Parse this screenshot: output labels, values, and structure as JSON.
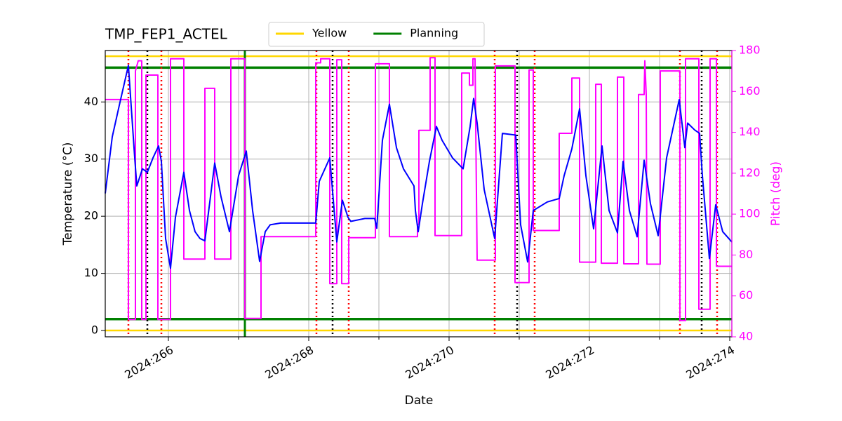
{
  "chart_data": {
    "type": "line",
    "title": "TMP_FEP1_ACTEL",
    "x_label": "Date",
    "y_label": "Temperature (°C)",
    "y2_label": "Pitch (deg)",
    "xlim": [
      265.1,
      274.03
    ],
    "xticks": [
      {
        "value": 266,
        "label": "2024:266"
      },
      {
        "value": 268,
        "label": "2024:268"
      },
      {
        "value": 270,
        "label": "2024:270"
      },
      {
        "value": 272,
        "label": "2024:272"
      },
      {
        "value": 274,
        "label": "2024:274"
      }
    ],
    "minor_xticks": [
      267,
      269,
      271,
      273
    ],
    "ylim": [
      -1.1,
      49
    ],
    "yticks": [
      0,
      10,
      20,
      30,
      40
    ],
    "y2lim": [
      40,
      180
    ],
    "y2ticks": [
      40,
      60,
      80,
      100,
      120,
      140,
      160,
      180
    ],
    "y2_color": "#ff00ff",
    "grid": true,
    "legend": "top",
    "limit_lines": [
      {
        "name": "Yellow",
        "color": "#ffd700",
        "values": [
          48,
          0
        ]
      },
      {
        "name": "Planning",
        "color": "#008000",
        "values": [
          46,
          2
        ]
      }
    ],
    "planning_vline": {
      "color": "#008000",
      "x": 267.09
    },
    "red_vlines": {
      "color": "#ff0000",
      "x": [
        265.43,
        265.9,
        268.11,
        268.57,
        270.65,
        271.22,
        273.29,
        273.82
      ]
    },
    "black_vlines": {
      "color": "#000000",
      "x": [
        265.7,
        268.34,
        270.97,
        273.6
      ]
    },
    "temperature": {
      "color": "#0000ff",
      "x": [
        265.1,
        265.2,
        265.3,
        265.43,
        265.52,
        265.55,
        265.63,
        265.7,
        265.78,
        265.86,
        265.9,
        265.96,
        266.03,
        266.1,
        266.22,
        266.3,
        266.38,
        266.45,
        266.52,
        266.66,
        266.75,
        266.87,
        267.0,
        267.11,
        267.2,
        267.3,
        267.38,
        267.45,
        267.6,
        268.1,
        268.15,
        268.3,
        268.4,
        268.48,
        268.56,
        268.6,
        268.8,
        268.94,
        268.97,
        269.05,
        269.15,
        269.25,
        269.35,
        269.5,
        269.52,
        269.56,
        269.62,
        269.72,
        269.82,
        269.9,
        270.05,
        270.2,
        270.3,
        270.35,
        270.4,
        270.5,
        270.65,
        270.76,
        270.95,
        271.02,
        271.12,
        271.2,
        271.4,
        271.57,
        271.64,
        271.75,
        271.86,
        271.95,
        272.06,
        272.18,
        272.28,
        272.4,
        272.48,
        272.57,
        272.68,
        272.78,
        272.87,
        272.98,
        273.1,
        273.28,
        273.36,
        273.4,
        273.5,
        273.57,
        273.61,
        273.71,
        273.8,
        273.9,
        274.03
      ],
      "values": [
        24.0,
        33.9,
        39.4,
        46.4,
        30.2,
        25.3,
        28.3,
        27.7,
        30.2,
        32.3,
        29.6,
        16.1,
        10.9,
        19.8,
        27.7,
        21.0,
        17.3,
        16.1,
        15.7,
        29.3,
        23.4,
        17.3,
        27.1,
        31.4,
        21.0,
        12.1,
        17.3,
        18.5,
        18.8,
        18.8,
        26.1,
        30.2,
        15.5,
        22.8,
        19.8,
        19.1,
        19.6,
        19.6,
        17.9,
        33.3,
        39.6,
        32.0,
        28.3,
        25.3,
        21.0,
        17.3,
        22.2,
        29.6,
        35.7,
        33.3,
        30.2,
        28.3,
        35.7,
        40.6,
        36.3,
        24.7,
        16.1,
        34.5,
        34.2,
        18.5,
        12.0,
        21.0,
        22.5,
        23.1,
        27.1,
        31.8,
        38.8,
        27.1,
        17.8,
        32.3,
        21.0,
        17.1,
        29.6,
        21.0,
        16.4,
        29.8,
        22.2,
        16.6,
        30.2,
        40.4,
        32.0,
        36.3,
        35.1,
        34.5,
        27.1,
        12.6,
        22.0,
        17.3,
        15.5
      ]
    },
    "pitch": {
      "color": "#ff00ff",
      "axis": "y2",
      "x": [
        265.1,
        265.43,
        265.43,
        265.53,
        265.53,
        265.57,
        265.62,
        265.62,
        265.68,
        265.68,
        265.85,
        265.85,
        266.03,
        266.03,
        266.22,
        266.22,
        266.52,
        266.52,
        266.66,
        266.66,
        266.89,
        266.89,
        267.09,
        267.09,
        267.32,
        267.32,
        268.1,
        268.1,
        268.17,
        268.17,
        268.3,
        268.3,
        268.4,
        268.4,
        268.47,
        268.47,
        268.57,
        268.57,
        268.95,
        268.95,
        269.15,
        269.15,
        269.55,
        269.55,
        269.57,
        269.57,
        269.73,
        269.73,
        269.8,
        269.8,
        270.18,
        270.18,
        270.29,
        270.29,
        270.34,
        270.34,
        270.37,
        270.4,
        270.66,
        270.66,
        270.94,
        270.94,
        271.14,
        271.14,
        271.2,
        271.2,
        271.57,
        271.57,
        271.75,
        271.75,
        271.86,
        271.86,
        272.09,
        272.09,
        272.17,
        272.17,
        272.4,
        272.4,
        272.49,
        272.49,
        272.7,
        272.7,
        272.78,
        272.79,
        272.81,
        272.82,
        273.01,
        273.01,
        273.29,
        273.29,
        273.37,
        273.37,
        273.56,
        273.56,
        273.72,
        273.72,
        273.81,
        273.81,
        274.03
      ],
      "values": [
        156,
        156,
        48.5,
        48.5,
        170,
        175,
        175,
        48.5,
        48.5,
        168,
        168,
        48.5,
        48.5,
        176,
        176,
        78,
        78,
        161.5,
        161.5,
        78,
        78,
        176,
        176,
        49,
        49,
        89,
        89,
        174,
        174,
        176,
        176,
        66,
        66,
        175.5,
        175.5,
        66,
        66,
        88.5,
        88.5,
        173.5,
        173.5,
        89,
        89,
        95,
        95,
        141,
        141,
        176.5,
        176.5,
        89.5,
        89.5,
        169,
        169,
        163,
        163,
        176,
        176,
        77.5,
        77.5,
        172.5,
        172.5,
        66.5,
        66.5,
        170.5,
        170.5,
        92,
        92,
        139.5,
        139.5,
        166.5,
        166.5,
        76.5,
        76.5,
        163.5,
        163.5,
        76,
        76,
        167,
        167,
        75.7,
        75.7,
        158.5,
        158.5,
        175,
        158.5,
        75.5,
        75.5,
        170,
        170,
        48,
        48,
        176,
        176,
        53.5,
        53.5,
        176,
        176,
        74.5,
        74.5
      ]
    }
  }
}
